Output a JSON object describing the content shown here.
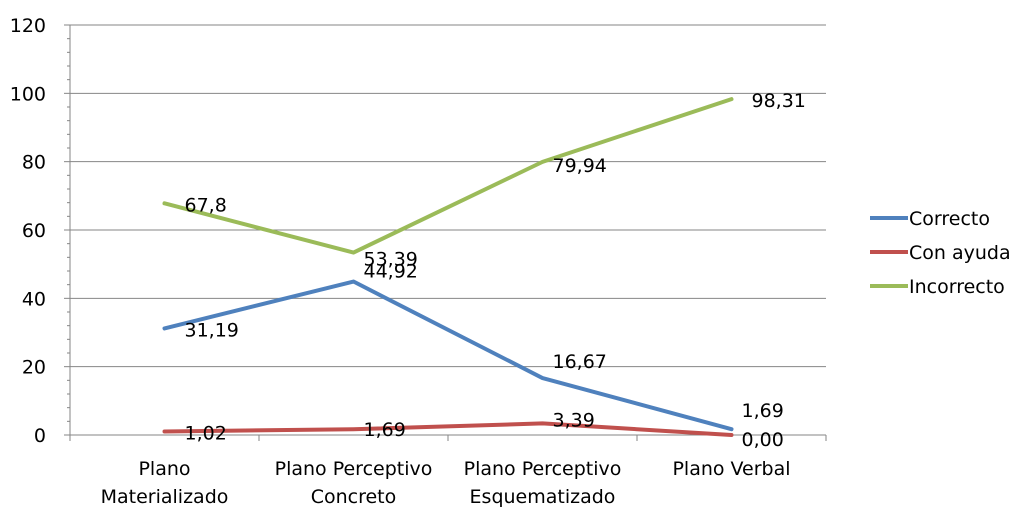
{
  "chart_data": {
    "type": "line",
    "categories": [
      [
        "Plano",
        "Materializado"
      ],
      [
        "Plano Perceptivo",
        "Concreto"
      ],
      [
        "Plano Perceptivo",
        "Esquematizado"
      ],
      [
        "Plano Verbal"
      ]
    ],
    "ylim": [
      0,
      120
    ],
    "yticks": [
      "0",
      "20",
      "40",
      "60",
      "80",
      "100",
      "120"
    ],
    "grid": true,
    "legend_position": "right",
    "series": [
      {
        "name": "Correcto",
        "color": "#4f81bd",
        "values": [
          31.19,
          44.92,
          16.67,
          1.69
        ],
        "labels": [
          "31,19",
          "44,92",
          "16,67",
          "1,69"
        ]
      },
      {
        "name": "Con ayuda",
        "color": "#c0504d",
        "values": [
          1.02,
          1.69,
          3.39,
          0.0
        ],
        "labels": [
          "1,02",
          "1,69",
          "3,39",
          "0,00"
        ]
      },
      {
        "name": "Incorrecto",
        "color": "#9bbb59",
        "values": [
          67.8,
          53.39,
          79.94,
          98.31
        ],
        "labels": [
          "67,8",
          "53,39",
          "79,94",
          "98,31"
        ]
      }
    ]
  }
}
